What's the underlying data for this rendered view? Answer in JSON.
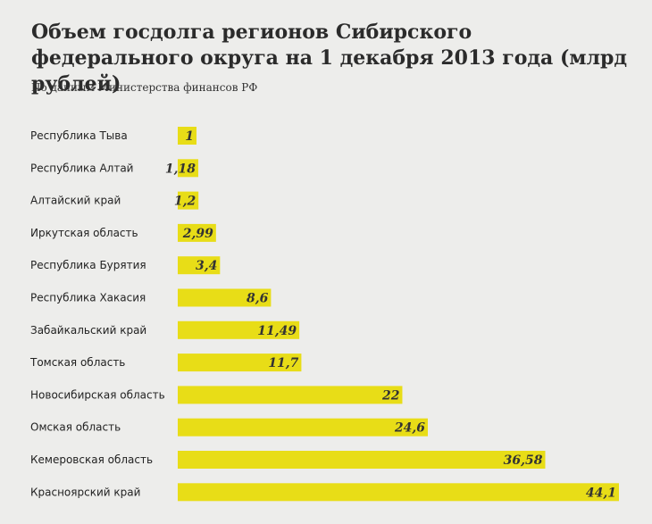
{
  "title": "Объем госдолга регионов Сибирского федерального округа на 1 декабря 2013 года (млрд рублей)",
  "subtitle": "По данным Министерства финансов РФ",
  "colors": {
    "bar": "#e8dd17",
    "background": "#ededeb"
  },
  "chart_data": {
    "type": "bar",
    "orientation": "horizontal",
    "categories": [
      "Республика Тыва",
      "Республика Алтай",
      "Алтайский край",
      "Иркутская область",
      "Республика Бурятия",
      "Республика Хакасия",
      "Забайкальский край",
      "Томская область",
      "Новосибирская область",
      "Омская область",
      "Кемеровская область",
      "Красноярский край"
    ],
    "values": [
      1,
      1.18,
      1.2,
      2.99,
      3.4,
      8.6,
      11.49,
      11.7,
      22,
      24.6,
      36.58,
      44.1
    ],
    "value_labels": [
      "1",
      "1,18",
      "1,2",
      "2,99",
      "3,4",
      "8,6",
      "11,49",
      "11,7",
      "22",
      "24,6",
      "36,58",
      "44,1"
    ],
    "title": "Объем госдолга регионов Сибирского федерального округа на 1 декабря 2013 года (млрд рублей)",
    "subtitle": "По данным Министерства финансов РФ",
    "xlabel": "",
    "ylabel": "",
    "xlim": [
      0,
      44.1
    ],
    "grid": false,
    "legend": "none"
  }
}
